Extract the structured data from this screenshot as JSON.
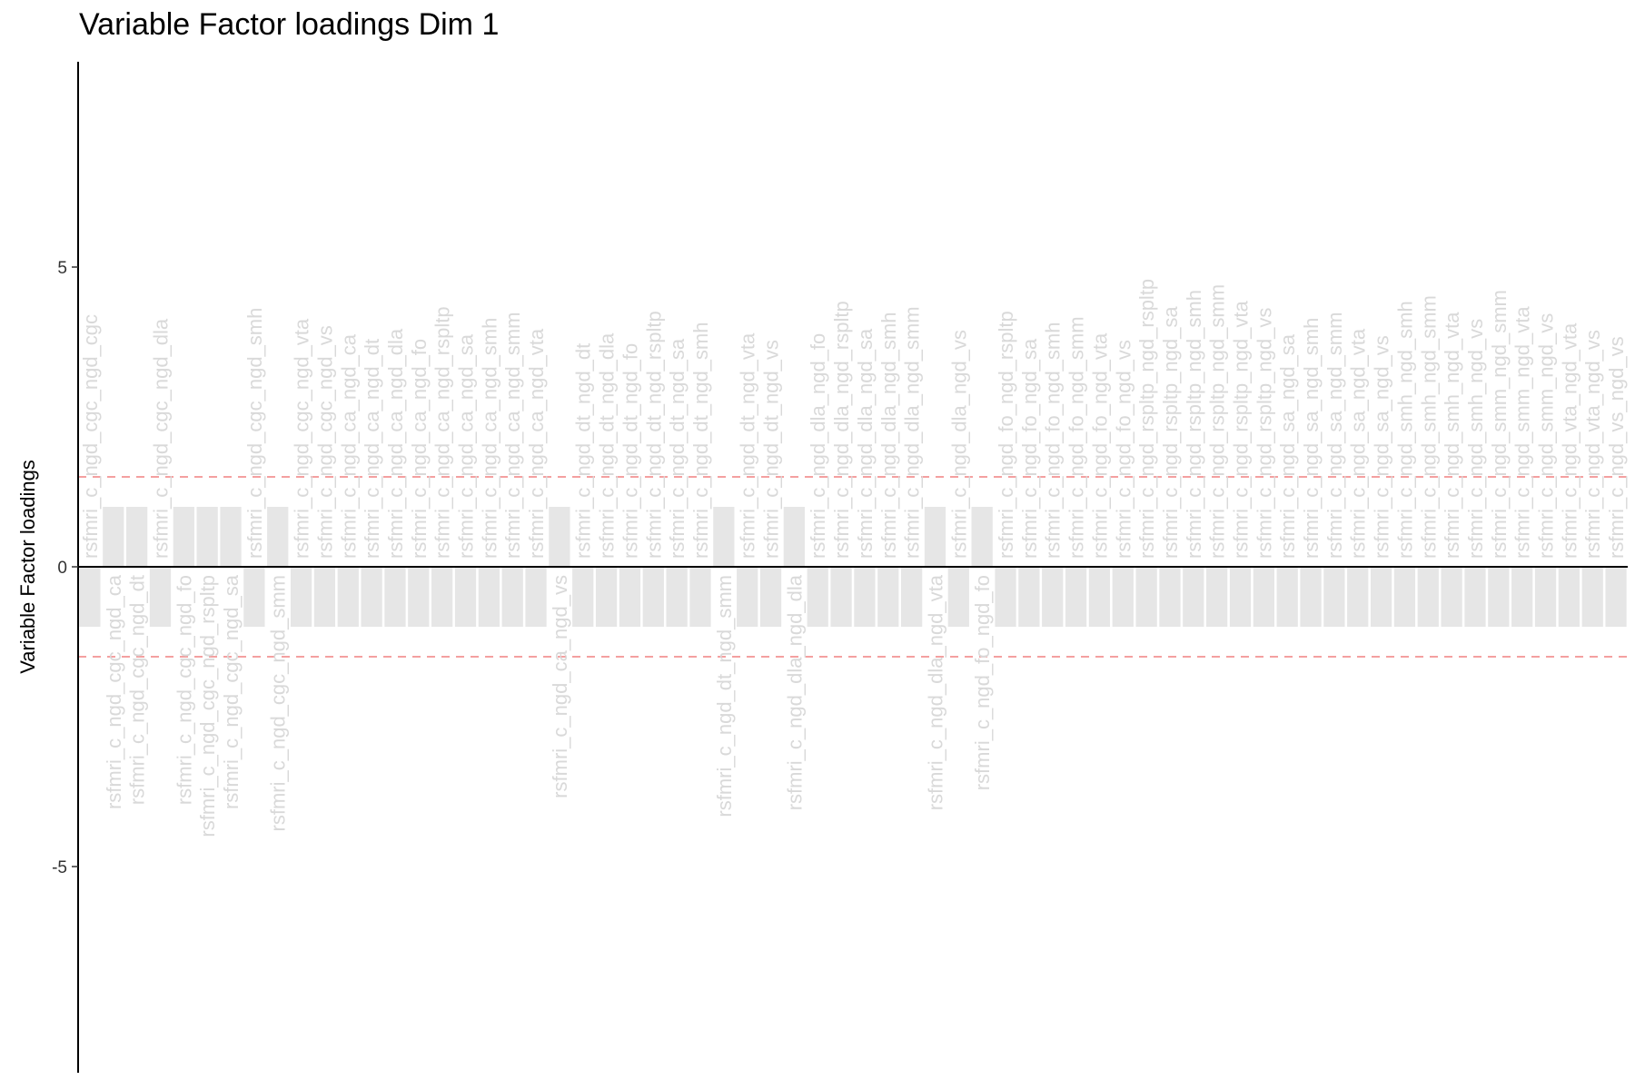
{
  "chart_data": {
    "type": "bar",
    "title": "Variable Factor loadings Dim 1",
    "xlabel": "",
    "ylabel": "Variable Factor loadings",
    "ylim": [
      -8.5,
      8.5
    ],
    "yticks": [
      {
        "value": 5,
        "label": "5"
      },
      {
        "value": 0,
        "label": "0"
      },
      {
        "value": -5,
        "label": "-5"
      }
    ],
    "threshold": 1.5,
    "grid": false,
    "legend": "none",
    "colors": {
      "positive_fill": "#E6E6FA",
      "positive_stroke": "#553C8B",
      "negative_fill": "#A1CC56",
      "negative_stroke": "#5A7A2A",
      "insignificant_fill": "#E6E6E6",
      "insignificant_text": "#D9D9D9",
      "threshold_line": "#F08080",
      "positive_text": "#553C8B",
      "negative_text": "#6B8E23"
    },
    "bars": [
      {
        "label": "rsfmri_c_ngd_cgc_ngd_cgc",
        "value": -1,
        "significant": false
      },
      {
        "label": "rsfmri_c_ngd_cgc_ngd_ca",
        "value": 1,
        "significant": false
      },
      {
        "label": "rsfmri_c_ngd_cgc_ngd_dt",
        "value": 1,
        "significant": false
      },
      {
        "label": "rsfmri_c_ngd_cgc_ngd_dla",
        "value": -1,
        "significant": false
      },
      {
        "label": "rsfmri_c_ngd_cgc_ngd_fo",
        "value": 1,
        "significant": false
      },
      {
        "label": "rsfmri_c_ngd_cgc_ngd_rspltp",
        "value": 1,
        "significant": false
      },
      {
        "label": "rsfmri_c_ngd_cgc_ngd_sa",
        "value": 1,
        "significant": false
      },
      {
        "label": "rsfmri_c_ngd_cgc_ngd_smh",
        "value": -1,
        "significant": false
      },
      {
        "label": "rsfmri_c_ngd_cgc_ngd_smm",
        "value": 1,
        "significant": false
      },
      {
        "label": "rsfmri_c_ngd_cgc_ngd_vta",
        "value": -1,
        "significant": false
      },
      {
        "label": "rsfmri_c_ngd_cgc_ngd_vs",
        "value": -1,
        "significant": false
      },
      {
        "label": "rsfmri_c_ngd_ca_ngd_ca",
        "value": -1,
        "significant": false
      },
      {
        "label": "rsfmri_c_ngd_ca_ngd_dt",
        "value": -1,
        "significant": false
      },
      {
        "label": "rsfmri_c_ngd_ca_ngd_dla",
        "value": -1,
        "significant": false
      },
      {
        "label": "rsfmri_c_ngd_ca_ngd_fo",
        "value": -1,
        "significant": false
      },
      {
        "label": "rsfmri_c_ngd_ca_ngd_rspltp",
        "value": -1,
        "significant": false
      },
      {
        "label": "rsfmri_c_ngd_ca_ngd_sa",
        "value": -1,
        "significant": false
      },
      {
        "label": "rsfmri_c_ngd_ca_ngd_smh",
        "value": -1,
        "significant": false
      },
      {
        "label": "rsfmri_c_ngd_ca_ngd_smm",
        "value": -1,
        "significant": false
      },
      {
        "label": "rsfmri_c_ngd_ca_ngd_vta",
        "value": -1,
        "significant": false
      },
      {
        "label": "rsfmri_c_ngd_ca_ngd_vs",
        "value": 1,
        "significant": false
      },
      {
        "label": "rsfmri_c_ngd_dt_ngd_dt",
        "value": -1,
        "significant": false
      },
      {
        "label": "rsfmri_c_ngd_dt_ngd_dla",
        "value": -1,
        "significant": false
      },
      {
        "label": "rsfmri_c_ngd_dt_ngd_fo",
        "value": -1,
        "significant": false
      },
      {
        "label": "rsfmri_c_ngd_dt_ngd_rspltp",
        "value": -1,
        "significant": false
      },
      {
        "label": "rsfmri_c_ngd_dt_ngd_sa",
        "value": -1,
        "significant": false
      },
      {
        "label": "rsfmri_c_ngd_dt_ngd_smh",
        "value": -1,
        "significant": false
      },
      {
        "label": "rsfmri_c_ngd_dt_ngd_smm",
        "value": 1,
        "significant": false
      },
      {
        "label": "rsfmri_c_ngd_dt_ngd_vta",
        "value": -1,
        "significant": false
      },
      {
        "label": "rsfmri_c_ngd_dt_ngd_vs",
        "value": -1,
        "significant": false
      },
      {
        "label": "rsfmri_c_ngd_dla_ngd_dla",
        "value": 1,
        "significant": false
      },
      {
        "label": "rsfmri_c_ngd_dla_ngd_fo",
        "value": -1,
        "significant": false
      },
      {
        "label": "rsfmri_c_ngd_dla_ngd_rspltp",
        "value": -1,
        "significant": false
      },
      {
        "label": "rsfmri_c_ngd_dla_ngd_sa",
        "value": -1,
        "significant": false
      },
      {
        "label": "rsfmri_c_ngd_dla_ngd_smh",
        "value": -1,
        "significant": false
      },
      {
        "label": "rsfmri_c_ngd_dla_ngd_smm",
        "value": -1,
        "significant": false
      },
      {
        "label": "rsfmri_c_ngd_dla_ngd_vta",
        "value": 1,
        "significant": false
      },
      {
        "label": "rsfmri_c_ngd_dla_ngd_vs",
        "value": -1,
        "significant": false
      },
      {
        "label": "rsfmri_c_ngd_fo_ngd_fo",
        "value": 1,
        "significant": false
      },
      {
        "label": "rsfmri_c_ngd_fo_ngd_rspltp",
        "value": -1,
        "significant": false
      },
      {
        "label": "rsfmri_c_ngd_fo_ngd_sa",
        "value": -1,
        "significant": false
      },
      {
        "label": "rsfmri_c_ngd_fo_ngd_smh",
        "value": -1,
        "significant": false
      },
      {
        "label": "rsfmri_c_ngd_fo_ngd_smm",
        "value": -1,
        "significant": false
      },
      {
        "label": "rsfmri_c_ngd_fo_ngd_vta",
        "value": -1,
        "significant": false
      },
      {
        "label": "rsfmri_c_ngd_fo_ngd_vs",
        "value": -1,
        "significant": false
      },
      {
        "label": "rsfmri_c_ngd_rspltp_ngd_rspltp",
        "value": -1,
        "significant": false
      },
      {
        "label": "rsfmri_c_ngd_rspltp_ngd_sa",
        "value": -1,
        "significant": false
      },
      {
        "label": "rsfmri_c_ngd_rspltp_ngd_smh",
        "value": -1,
        "significant": false
      },
      {
        "label": "rsfmri_c_ngd_rspltp_ngd_smm",
        "value": -1,
        "significant": false
      },
      {
        "label": "rsfmri_c_ngd_rspltp_ngd_vta",
        "value": -1,
        "significant": false
      },
      {
        "label": "rsfmri_c_ngd_rspltp_ngd_vs",
        "value": -1,
        "significant": false
      },
      {
        "label": "rsfmri_c_ngd_sa_ngd_sa",
        "value": -1,
        "significant": false
      },
      {
        "label": "rsfmri_c_ngd_sa_ngd_smh",
        "value": -1,
        "significant": false
      },
      {
        "label": "rsfmri_c_ngd_sa_ngd_smm",
        "value": -1,
        "significant": false
      },
      {
        "label": "rsfmri_c_ngd_sa_ngd_vta",
        "value": -1,
        "significant": false
      },
      {
        "label": "rsfmri_c_ngd_sa_ngd_vs",
        "value": -1,
        "significant": false
      },
      {
        "label": "rsfmri_c_ngd_smh_ngd_smh",
        "value": -1,
        "significant": false
      },
      {
        "label": "rsfmri_c_ngd_smh_ngd_smm",
        "value": -1,
        "significant": false
      },
      {
        "label": "rsfmri_c_ngd_smh_ngd_vta",
        "value": -1,
        "significant": false
      },
      {
        "label": "rsfmri_c_ngd_smh_ngd_vs",
        "value": -1,
        "significant": false
      },
      {
        "label": "rsfmri_c_ngd_smm_ngd_smm",
        "value": -1,
        "significant": false
      },
      {
        "label": "rsfmri_c_ngd_smm_ngd_vta",
        "value": -1,
        "significant": false
      },
      {
        "label": "rsfmri_c_ngd_smm_ngd_vs",
        "value": -1,
        "significant": false
      },
      {
        "label": "rsfmri_c_ngd_vta_ngd_vta",
        "value": -1,
        "significant": false
      },
      {
        "label": "rsfmri_c_ngd_vta_ngd_vs",
        "value": -1,
        "significant": false
      },
      {
        "label": "rsfmri_c_ngd_vs_ngd_vs",
        "value": -1,
        "significant": false
      }
    ]
  }
}
